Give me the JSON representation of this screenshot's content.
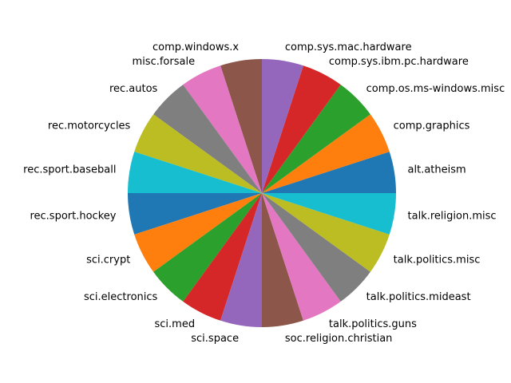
{
  "chart_data": {
    "type": "pie",
    "title": "",
    "start_angle_deg": 0,
    "direction": "counterclockwise",
    "legend": "none",
    "slices": [
      {
        "label": "alt.atheism",
        "value": 1,
        "color": "#1f77b4"
      },
      {
        "label": "comp.graphics",
        "value": 1,
        "color": "#ff7f0e"
      },
      {
        "label": "comp.os.ms-windows.misc",
        "value": 1,
        "color": "#2ca02c"
      },
      {
        "label": "comp.sys.ibm.pc.hardware",
        "value": 1,
        "color": "#d62728"
      },
      {
        "label": "comp.sys.mac.hardware",
        "value": 1,
        "color": "#9467bd"
      },
      {
        "label": "comp.windows.x",
        "value": 1,
        "color": "#8c564b"
      },
      {
        "label": "misc.forsale",
        "value": 1,
        "color": "#e377c2"
      },
      {
        "label": "rec.autos",
        "value": 1,
        "color": "#7f7f7f"
      },
      {
        "label": "rec.motorcycles",
        "value": 1,
        "color": "#bcbd22"
      },
      {
        "label": "rec.sport.baseball",
        "value": 1,
        "color": "#17becf"
      },
      {
        "label": "rec.sport.hockey",
        "value": 1,
        "color": "#1f77b4"
      },
      {
        "label": "sci.crypt",
        "value": 1,
        "color": "#ff7f0e"
      },
      {
        "label": "sci.electronics",
        "value": 1,
        "color": "#2ca02c"
      },
      {
        "label": "sci.med",
        "value": 1,
        "color": "#d62728"
      },
      {
        "label": "sci.space",
        "value": 1,
        "color": "#9467bd"
      },
      {
        "label": "soc.religion.christian",
        "value": 1,
        "color": "#8c564b"
      },
      {
        "label": "talk.politics.guns",
        "value": 1,
        "color": "#e377c2"
      },
      {
        "label": "talk.politics.mideast",
        "value": 1,
        "color": "#7f7f7f"
      },
      {
        "label": "talk.politics.misc",
        "value": 1,
        "color": "#bcbd22"
      },
      {
        "label": "talk.religion.misc",
        "value": 1,
        "color": "#17becf"
      }
    ]
  }
}
